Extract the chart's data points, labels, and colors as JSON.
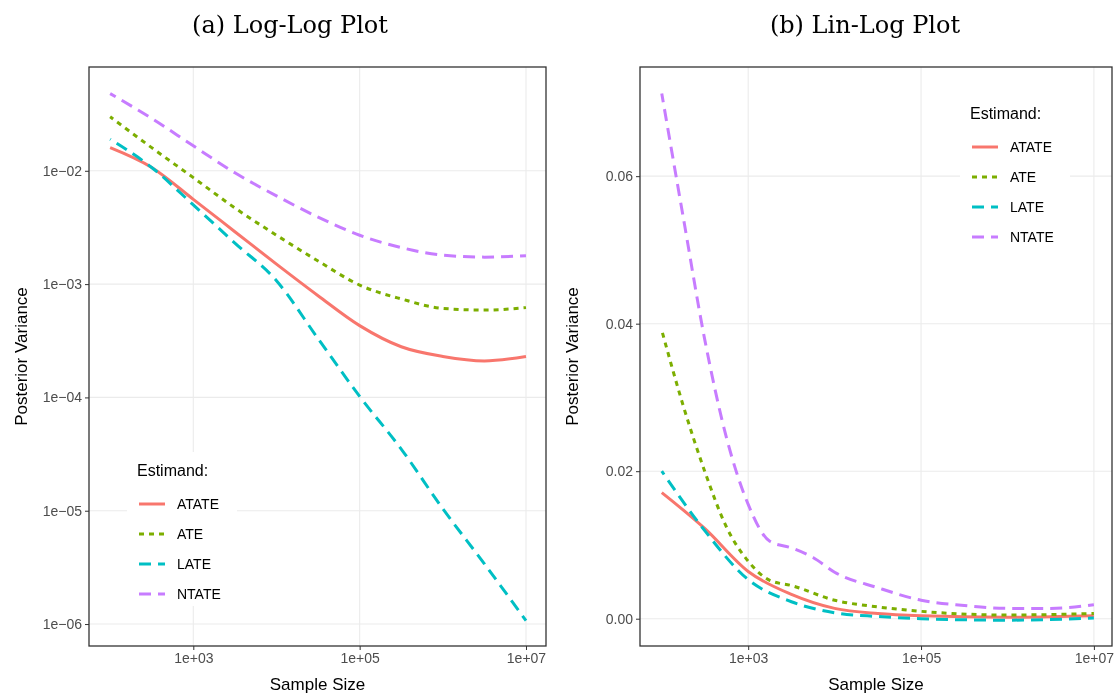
{
  "chart_data": [
    {
      "type": "line",
      "title": "(a) Log-Log Plot",
      "xlabel": "Sample Size",
      "ylabel": "Posterior Variance",
      "legend_title": "Estimand:",
      "legend": "bottom left",
      "grid": true,
      "log": "xy",
      "xlim": [
        55.7,
        17400000
      ],
      "xticks": [
        {
          "value": 1000,
          "label": "1e+03"
        },
        {
          "value": 100000,
          "label": "1e+05"
        },
        {
          "value": 10000000,
          "label": "1e+07"
        }
      ],
      "ylim": [
        6.4e-07,
        0.0824
      ],
      "yticks": [
        {
          "value": 0.01,
          "label": "1e−02"
        },
        {
          "value": 0.001,
          "label": "1e−03"
        },
        {
          "value": 0.0001,
          "label": "1e−04"
        },
        {
          "value": 1e-05,
          "label": "1e−05"
        },
        {
          "value": 1e-06,
          "label": "1e−06"
        }
      ],
      "series": [
        {
          "name": "ATATE",
          "color": "#f8766d",
          "line_style": "solid",
          "x": [
            100,
            316,
            1000,
            3162,
            10000,
            31623,
            100000,
            316228,
            1000000,
            3162278,
            10000000
          ],
          "values": [
            0.016,
            0.0107,
            0.0056,
            0.0029,
            0.0015,
            0.00079,
            0.00043,
            0.00028,
            0.00023,
            0.00021,
            0.00023
          ]
        },
        {
          "name": "ATE",
          "color": "#7cae00",
          "line_style": "dotted",
          "x": [
            100,
            316,
            1000,
            3162,
            10000,
            31623,
            100000,
            316228,
            1000000,
            3162278,
            10000000
          ],
          "values": [
            0.03,
            0.016,
            0.0087,
            0.0047,
            0.0027,
            0.0016,
            0.00098,
            0.00074,
            0.00061,
            0.00059,
            0.00062
          ]
        },
        {
          "name": "LATE",
          "color": "#00bfc4",
          "line_style": "dashed",
          "x": [
            100,
            316,
            1000,
            3162,
            10000,
            31623,
            100000,
            316228,
            1000000,
            3162278,
            10000000
          ],
          "values": [
            0.019,
            0.0107,
            0.005,
            0.0023,
            0.00107,
            0.00033,
            0.000102,
            3.5e-05,
            1.04e-05,
            3.4e-06,
            1.07e-06
          ]
        },
        {
          "name": "NTATE",
          "color": "#c77cff",
          "line_style": "dashed",
          "x": [
            100,
            316,
            1000,
            3162,
            10000,
            31623,
            100000,
            316228,
            1000000,
            3162278,
            10000000
          ],
          "values": [
            0.048,
            0.029,
            0.0166,
            0.0096,
            0.006,
            0.0039,
            0.0027,
            0.0021,
            0.0018,
            0.00173,
            0.00178
          ]
        }
      ]
    },
    {
      "type": "line",
      "title": "(b) Lin-Log Plot",
      "xlabel": "Sample Size",
      "ylabel": "Posterior Variance",
      "legend_title": "Estimand:",
      "legend": "top right",
      "grid": true,
      "log": "x",
      "xlim": [
        56,
        16200000
      ],
      "xticks": [
        {
          "value": 1000,
          "label": "1e+03"
        },
        {
          "value": 100000,
          "label": "1e+05"
        },
        {
          "value": 10000000,
          "label": "1e+07"
        }
      ],
      "ylim": [
        -0.0037,
        0.0748
      ],
      "yticks": [
        {
          "value": 0,
          "label": "0.00"
        },
        {
          "value": 0.02,
          "label": "0.02"
        },
        {
          "value": 0.04,
          "label": "0.04"
        },
        {
          "value": 0.06,
          "label": "0.06"
        }
      ],
      "series": [
        {
          "name": "ATATE",
          "color": "#f8766d",
          "line_style": "solid",
          "x": [
            100,
            316,
            1000,
            3162,
            10000,
            31623,
            100000,
            1000000,
            10000000
          ],
          "values": [
            0.0171,
            0.0122,
            0.0064,
            0.0033,
            0.0014,
            0.0007,
            0.0004,
            0.0002,
            0.0004
          ]
        },
        {
          "name": "ATE",
          "color": "#7cae00",
          "line_style": "dotted",
          "x": [
            100,
            178,
            316,
            562,
            1000,
            1778,
            3162,
            10000,
            31623,
            100000,
            1000000,
            10000000
          ],
          "values": [
            0.0391,
            0.0288,
            0.0199,
            0.0124,
            0.0078,
            0.0052,
            0.0045,
            0.0025,
            0.0016,
            0.001,
            0.0005,
            0.0007
          ]
        },
        {
          "name": "LATE",
          "color": "#00bfc4",
          "line_style": "dashed",
          "x": [
            100,
            316,
            1000,
            3162,
            10000,
            31623,
            100000,
            1000000,
            10000000
          ],
          "values": [
            0.02,
            0.0119,
            0.0053,
            0.0023,
            0.0008,
            0.0003,
            0,
            -0.0002,
            0.0001
          ]
        },
        {
          "name": "NTATE",
          "color": "#c77cff",
          "line_style": "dashed",
          "x": [
            100,
            178,
            316,
            562,
            1000,
            1778,
            3162,
            5623,
            10000,
            31623,
            100000,
            316228,
            1000000,
            3162278,
            10000000
          ],
          "values": [
            0.0712,
            0.0543,
            0.0377,
            0.0245,
            0.0155,
            0.0105,
            0.0096,
            0.0083,
            0.0063,
            0.0042,
            0.0025,
            0.0018,
            0.0014,
            0.0014,
            0.0019
          ]
        }
      ]
    }
  ]
}
